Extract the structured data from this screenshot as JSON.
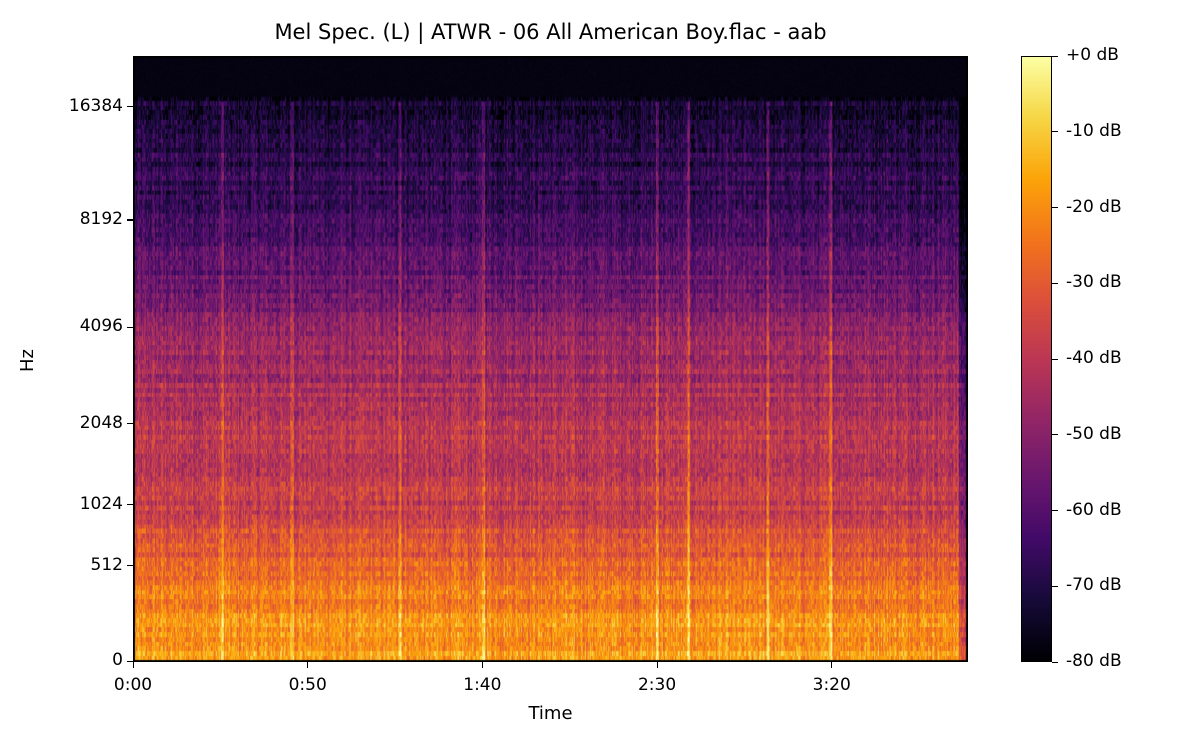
{
  "chart_data": {
    "type": "heatmap",
    "title": "Mel Spec. (L) | ATWR - 06 All American Boy.flac - aab",
    "xlabel": "Time",
    "ylabel": "Hz",
    "x_scale": "time",
    "y_scale": "mel",
    "xlim_seconds": [
      0,
      239
    ],
    "ylim_hz": [
      0,
      22050
    ],
    "x_ticks": [
      {
        "label": "0:00",
        "value": 0
      },
      {
        "label": "0:50",
        "value": 50
      },
      {
        "label": "1:40",
        "value": 100
      },
      {
        "label": "2:30",
        "value": 150
      },
      {
        "label": "3:20",
        "value": 200
      }
    ],
    "y_ticks": [
      {
        "label": "0",
        "value": 0
      },
      {
        "label": "512",
        "value": 512
      },
      {
        "label": "1024",
        "value": 1024
      },
      {
        "label": "2048",
        "value": 2048
      },
      {
        "label": "4096",
        "value": 4096
      },
      {
        "label": "8192",
        "value": 8192
      },
      {
        "label": "16384",
        "value": 16384
      }
    ],
    "colormap": "inferno",
    "colorbar": {
      "range_db": [
        -80,
        0
      ],
      "ticks": [
        {
          "label": "+0 dB",
          "value": 0
        },
        {
          "label": "-10 dB",
          "value": -10
        },
        {
          "label": "-20 dB",
          "value": -20
        },
        {
          "label": "-30 dB",
          "value": -30
        },
        {
          "label": "-40 dB",
          "value": -40
        },
        {
          "label": "-50 dB",
          "value": -50
        },
        {
          "label": "-60 dB",
          "value": -60
        },
        {
          "label": "-70 dB",
          "value": -70
        },
        {
          "label": "-80 dB",
          "value": -80
        }
      ]
    },
    "approx_level_db_by_freq": [
      {
        "hz": 100,
        "db": -18
      },
      {
        "hz": 512,
        "db": -28
      },
      {
        "hz": 1024,
        "db": -38
      },
      {
        "hz": 2048,
        "db": -40
      },
      {
        "hz": 4096,
        "db": -50
      },
      {
        "hz": 8192,
        "db": -65
      },
      {
        "hz": 16384,
        "db": -72
      },
      {
        "hz": 18000,
        "db": -80
      }
    ],
    "transients_seconds": [
      25,
      45,
      76,
      100,
      150,
      159,
      182,
      200
    ]
  }
}
